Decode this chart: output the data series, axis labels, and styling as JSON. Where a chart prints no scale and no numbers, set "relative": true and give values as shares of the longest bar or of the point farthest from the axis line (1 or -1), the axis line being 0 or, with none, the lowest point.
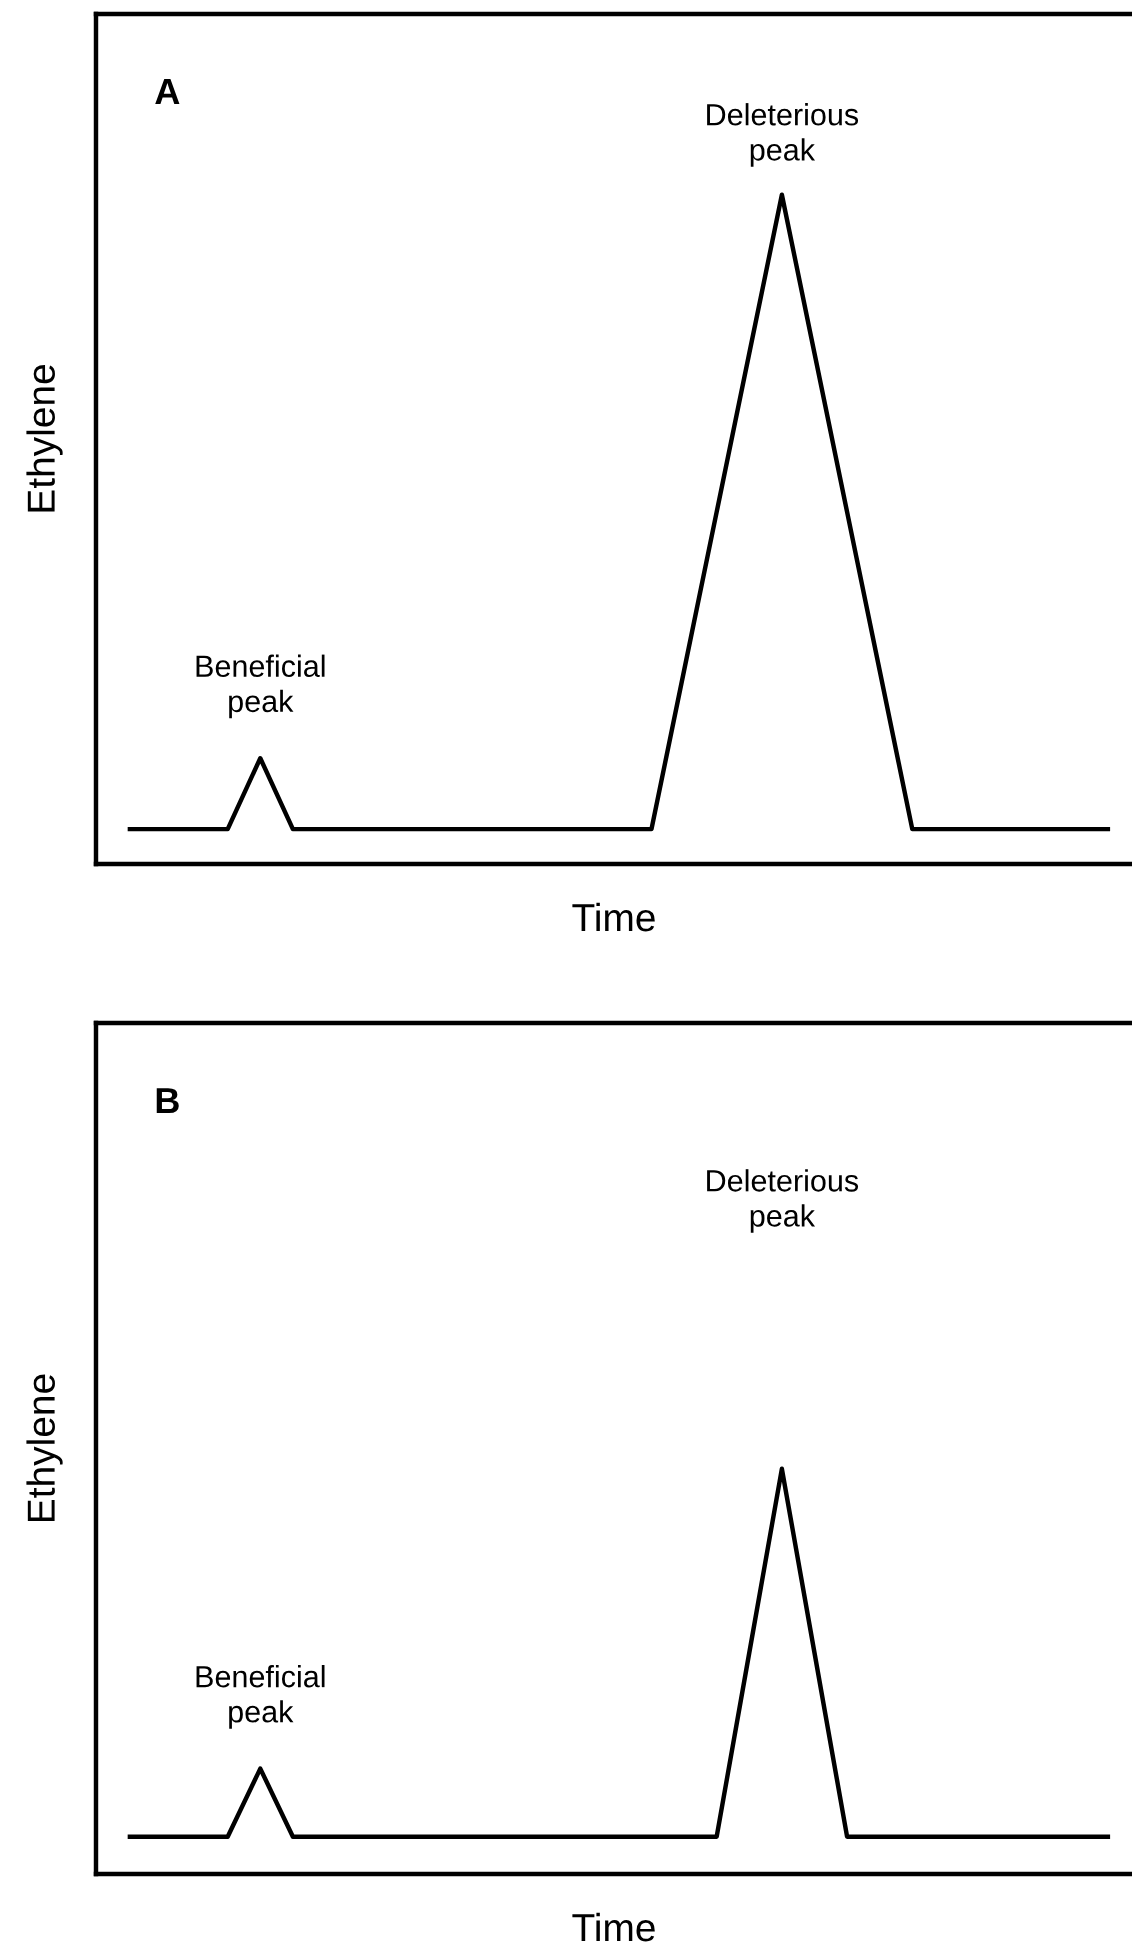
{
  "chart_data": [
    {
      "type": "line",
      "title": "A",
      "xlabel": "Time",
      "ylabel": "Ethylene",
      "relative": true,
      "tick_labels": false,
      "categories": [
        null,
        null,
        null,
        null,
        null,
        null,
        null,
        null,
        null,
        null,
        null,
        null,
        null,
        null,
        null,
        null,
        null,
        null,
        null,
        null,
        null,
        null,
        null,
        null,
        null,
        null,
        null,
        null,
        null,
        null,
        null
      ],
      "series": [
        {
          "color": "#000000",
          "values": [
            0.052,
            0.052,
            0.052,
            0.052,
            0.158,
            0.052,
            0.052,
            0.052,
            0.052,
            0.052,
            0.052,
            0.052,
            0.052,
            0.052,
            0.052,
            0.052,
            0.052,
            0.289,
            0.526,
            0.763,
            1,
            0.763,
            0.526,
            0.289,
            0.052,
            0.052,
            0.052,
            0.052,
            0.052,
            0.052,
            0.052
          ]
        }
      ],
      "annotations": [
        "Beneficial\npeak",
        "Deleterious\npeak"
      ]
    },
    {
      "type": "line",
      "title": "B",
      "xlabel": "Time",
      "ylabel": "Ethylene",
      "relative": true,
      "tick_labels": false,
      "categories": [
        null,
        null,
        null,
        null,
        null,
        null,
        null,
        null,
        null,
        null,
        null,
        null,
        null,
        null,
        null,
        null,
        null,
        null,
        null,
        null,
        null,
        null,
        null,
        null,
        null,
        null,
        null,
        null,
        null,
        null,
        null
      ],
      "series": [
        {
          "color": "#000000",
          "values": [
            0.092,
            0.092,
            0.092,
            0.092,
            0.26,
            0.092,
            0.092,
            0.092,
            0.092,
            0.092,
            0.092,
            0.092,
            0.092,
            0.092,
            0.092,
            0.092,
            0.092,
            0.092,
            0.092,
            0.546,
            1,
            0.546,
            0.092,
            0.092,
            0.092,
            0.092,
            0.092,
            0.092,
            0.092,
            0.092,
            0.092
          ]
        }
      ],
      "annotations": [
        "Beneficial\npeak",
        "Deleterious\npeak"
      ]
    }
  ]
}
